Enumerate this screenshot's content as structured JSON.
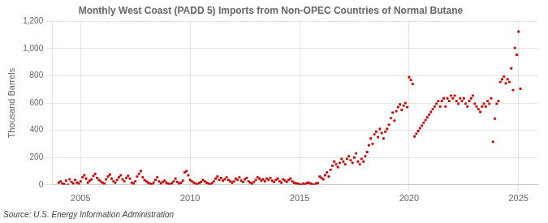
{
  "chart_data": {
    "type": "scatter",
    "title": "Monthly West Coast (PADD 5) Imports from Non-OPEC Countries of Normal Butane",
    "ylabel": "Thousand Barrels",
    "source": "Source: U.S. Energy Information Administration",
    "color": "#cc0000",
    "marker": "square",
    "grid": true,
    "xlim": [
      2003.7,
      2025.9
    ],
    "xticks": [
      2005,
      2010,
      2015,
      2020,
      2025
    ],
    "ylim": [
      0,
      1200
    ],
    "yticks": [
      0,
      200,
      400,
      600,
      800,
      {
        "value": 1000,
        "label": "1,000"
      },
      {
        "value": 1200,
        "label": "1,200"
      }
    ],
    "x": [
      2004,
      2004.083333,
      2004.166667,
      2004.25,
      2004.333333,
      2004.416667,
      2004.5,
      2004.583333,
      2004.666667,
      2004.75,
      2004.833333,
      2004.916667,
      2005,
      2005.083333,
      2005.166667,
      2005.25,
      2005.333333,
      2005.416667,
      2005.5,
      2005.583333,
      2005.666667,
      2005.75,
      2005.833333,
      2005.916667,
      2006,
      2006.083333,
      2006.166667,
      2006.25,
      2006.333333,
      2006.416667,
      2006.5,
      2006.583333,
      2006.666667,
      2006.75,
      2006.833333,
      2006.916667,
      2007,
      2007.083333,
      2007.166667,
      2007.25,
      2007.333333,
      2007.416667,
      2007.5,
      2007.583333,
      2007.666667,
      2007.75,
      2007.833333,
      2007.916667,
      2008,
      2008.083333,
      2008.166667,
      2008.25,
      2008.333333,
      2008.416667,
      2008.5,
      2008.583333,
      2008.666667,
      2008.75,
      2008.833333,
      2008.916667,
      2009,
      2009.083333,
      2009.166667,
      2009.25,
      2009.333333,
      2009.416667,
      2009.5,
      2009.583333,
      2009.666667,
      2009.75,
      2009.833333,
      2009.916667,
      2010,
      2010.083333,
      2010.166667,
      2010.25,
      2010.333333,
      2010.416667,
      2010.5,
      2010.583333,
      2010.666667,
      2010.75,
      2010.833333,
      2010.916667,
      2011,
      2011.083333,
      2011.166667,
      2011.25,
      2011.333333,
      2011.416667,
      2011.5,
      2011.583333,
      2011.666667,
      2011.75,
      2011.833333,
      2011.916667,
      2012,
      2012.083333,
      2012.166667,
      2012.25,
      2012.333333,
      2012.416667,
      2012.5,
      2012.583333,
      2012.666667,
      2012.75,
      2012.833333,
      2012.916667,
      2013,
      2013.083333,
      2013.166667,
      2013.25,
      2013.333333,
      2013.416667,
      2013.5,
      2013.583333,
      2013.666667,
      2013.75,
      2013.833333,
      2013.916667,
      2014,
      2014.083333,
      2014.166667,
      2014.25,
      2014.333333,
      2014.416667,
      2014.5,
      2014.583333,
      2014.666667,
      2014.75,
      2014.833333,
      2014.916667,
      2015,
      2015.083333,
      2015.166667,
      2015.25,
      2015.333333,
      2015.416667,
      2015.5,
      2015.583333,
      2015.666667,
      2015.75,
      2015.833333,
      2015.916667,
      2016,
      2016.083333,
      2016.166667,
      2016.25,
      2016.333333,
      2016.416667,
      2016.5,
      2016.583333,
      2016.666667,
      2016.75,
      2016.833333,
      2016.916667,
      2017,
      2017.083333,
      2017.166667,
      2017.25,
      2017.333333,
      2017.416667,
      2017.5,
      2017.583333,
      2017.666667,
      2017.75,
      2017.833333,
      2017.916667,
      2018,
      2018.083333,
      2018.166667,
      2018.25,
      2018.333333,
      2018.416667,
      2018.5,
      2018.583333,
      2018.666667,
      2018.75,
      2018.833333,
      2018.916667,
      2019,
      2019.083333,
      2019.166667,
      2019.25,
      2019.333333,
      2019.416667,
      2019.5,
      2019.583333,
      2019.666667,
      2019.75,
      2019.833333,
      2019.916667,
      2020,
      2020.083333,
      2020.166667,
      2020.25,
      2020.333333,
      2020.416667,
      2020.5,
      2020.583333,
      2020.666667,
      2020.75,
      2020.833333,
      2020.916667,
      2021,
      2021.083333,
      2021.166667,
      2021.25,
      2021.333333,
      2021.416667,
      2021.5,
      2021.583333,
      2021.666667,
      2021.75,
      2021.833333,
      2021.916667,
      2022,
      2022.083333,
      2022.166667,
      2022.25,
      2022.333333,
      2022.416667,
      2022.5,
      2022.583333,
      2022.666667,
      2022.75,
      2022.833333,
      2022.916667,
      2023,
      2023.083333,
      2023.166667,
      2023.25,
      2023.333333,
      2023.416667,
      2023.5,
      2023.583333,
      2023.666667,
      2023.75,
      2023.833333,
      2023.916667,
      2024,
      2024.083333,
      2024.166667,
      2024.25,
      2024.333333,
      2024.416667,
      2024.5,
      2024.583333,
      2024.666667,
      2024.75,
      2024.833333,
      2024.916667,
      2025,
      2025.083333
    ],
    "values": [
      15,
      25,
      10,
      5,
      30,
      0,
      40,
      20,
      10,
      35,
      15,
      8,
      25,
      55,
      70,
      45,
      15,
      30,
      40,
      65,
      80,
      50,
      35,
      25,
      15,
      8,
      40,
      60,
      75,
      45,
      25,
      15,
      35,
      55,
      70,
      40,
      25,
      50,
      65,
      45,
      15,
      8,
      25,
      60,
      80,
      100,
      55,
      35,
      25,
      15,
      8,
      3,
      15,
      35,
      55,
      25,
      10,
      20,
      30,
      15,
      8,
      3,
      12,
      25,
      45,
      20,
      8,
      15,
      30,
      90,
      100,
      70,
      35,
      25,
      15,
      8,
      3,
      12,
      20,
      35,
      25,
      15,
      8,
      3,
      12,
      25,
      45,
      60,
      35,
      50,
      30,
      40,
      55,
      35,
      25,
      15,
      25,
      45,
      35,
      55,
      30,
      20,
      40,
      50,
      25,
      15,
      8,
      20,
      35,
      55,
      45,
      30,
      40,
      25,
      45,
      35,
      50,
      30,
      20,
      35,
      45,
      25,
      15,
      40,
      30,
      20,
      35,
      45,
      25,
      15,
      10,
      8,
      3,
      0,
      8,
      3,
      12,
      15,
      8,
      3,
      0,
      8,
      12,
      60,
      50,
      40,
      70,
      90,
      60,
      110,
      140,
      170,
      150,
      130,
      160,
      190,
      170,
      150,
      190,
      210,
      180,
      160,
      200,
      230,
      170,
      150,
      190,
      170,
      210,
      240,
      290,
      340,
      300,
      370,
      390,
      350,
      410,
      380,
      340,
      390,
      410,
      440,
      490,
      530,
      470,
      540,
      570,
      590,
      550,
      580,
      600,
      570,
      790,
      770,
      740,
      355,
      375,
      395,
      415,
      435,
      455,
      475,
      495,
      515,
      535,
      555,
      575,
      595,
      615,
      575,
      615,
      635,
      575,
      635,
      615,
      655,
      635,
      655,
      615,
      595,
      635,
      615,
      635,
      595,
      575,
      615,
      635,
      655,
      595,
      575,
      555,
      535,
      575,
      595,
      575,
      615,
      595,
      635,
      315,
      485,
      595,
      615,
      755,
      775,
      795,
      745,
      775,
      755,
      855,
      695,
      1005,
      955,
      1125,
      705
    ]
  }
}
